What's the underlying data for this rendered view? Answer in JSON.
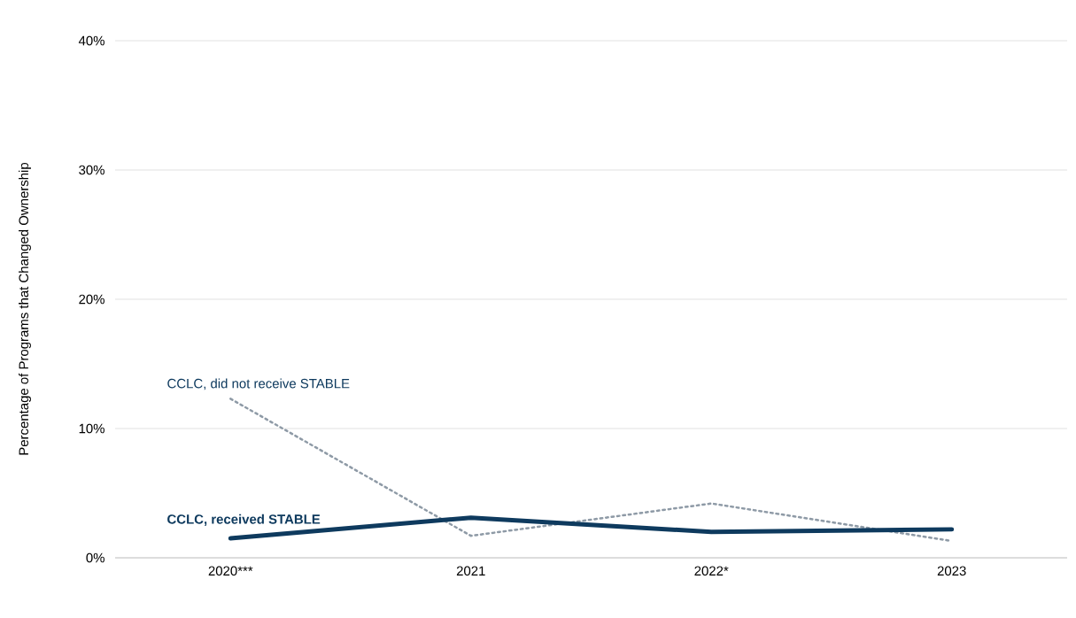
{
  "chart_data": {
    "type": "line",
    "ylabel": "Percentage of Programs that Changed Ownership",
    "categories": [
      "2020***",
      "2021",
      "2022*",
      "2023"
    ],
    "series": [
      {
        "name": "CCLC, did not receive STABLE",
        "color": "#8e9aa6",
        "line_style": "dotted",
        "values": [
          12.3,
          1.7,
          4.2,
          1.3
        ]
      },
      {
        "name": "CCLC, received STABLE",
        "color": "#0e3a5e",
        "line_style": "solid",
        "values": [
          1.5,
          3.1,
          2.0,
          2.2
        ]
      }
    ],
    "ylim": [
      0,
      40
    ],
    "yticks": [
      {
        "value": 0,
        "label": "0%"
      },
      {
        "value": 10,
        "label": "10%"
      },
      {
        "value": 20,
        "label": "20%"
      },
      {
        "value": 30,
        "label": "30%"
      },
      {
        "value": 40,
        "label": "40%"
      }
    ],
    "grid": "y",
    "legend": false,
    "marker": "none"
  }
}
